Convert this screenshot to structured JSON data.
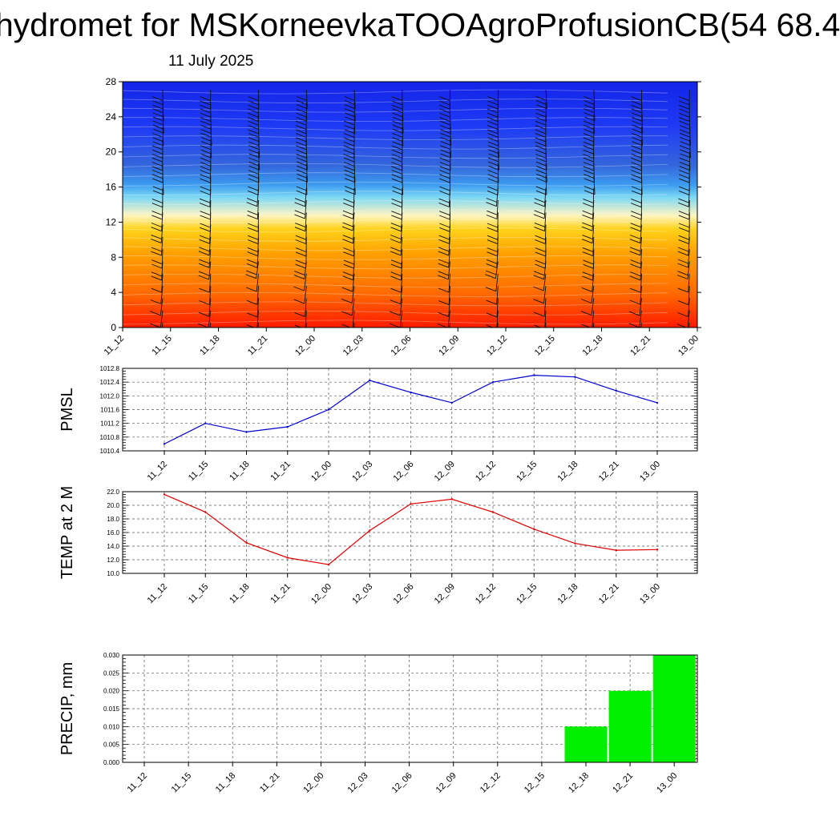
{
  "title": "hydromet for MSKorneevkaTOOAgroProfusionCB(54 68.4",
  "subtitle": "11 July 2025",
  "chart_data": [
    {
      "type": "heatmap",
      "title": "",
      "ylim": [
        0,
        28
      ],
      "yticks": [
        0,
        4,
        8,
        12,
        16,
        20,
        24,
        28
      ],
      "categories": [
        "11_12",
        "11_15",
        "11_18",
        "11_21",
        "12_00",
        "12_03",
        "12_06",
        "12_09",
        "12_12",
        "12_15",
        "12_18",
        "12_21",
        "13_00"
      ],
      "colormap": [
        "#ff1a00",
        "#ff6a00",
        "#ffa000",
        "#ffd21a",
        "#fff5c0",
        "#7dd8f5",
        "#3c9cf0",
        "#3466dd",
        "#1e3af5",
        "#1424e8"
      ],
      "grid": false,
      "wind_barbs": true
    },
    {
      "type": "line",
      "ylabel": "PMSL",
      "color": "#0000cc",
      "categories": [
        "11_12",
        "11_15",
        "11_18",
        "11_21",
        "12_00",
        "12_03",
        "12_06",
        "12_09",
        "12_12",
        "12_15",
        "12_18",
        "12_21",
        "13_00"
      ],
      "values": [
        1010.6,
        1011.2,
        1010.95,
        1011.1,
        1011.6,
        1012.45,
        1012.1,
        1011.8,
        1012.4,
        1012.6,
        1012.55,
        1012.15,
        1011.8
      ],
      "ylim": [
        1010.4,
        1012.8
      ],
      "yticks": [
        "1010.4",
        "1010.8",
        "1011.2",
        "1011.6",
        "1012.0",
        "1012.4",
        "1012.8"
      ],
      "grid": true
    },
    {
      "type": "line",
      "ylabel": "TEMP at 2 M",
      "color": "#dd0000",
      "categories": [
        "11_12",
        "11_15",
        "11_18",
        "11_21",
        "12_00",
        "12_03",
        "12_06",
        "12_09",
        "12_12",
        "12_15",
        "12_18",
        "12_21",
        "13_00"
      ],
      "values": [
        21.6,
        19.0,
        14.5,
        12.3,
        11.3,
        16.3,
        20.2,
        20.9,
        19.0,
        16.5,
        14.4,
        13.4,
        13.5
      ],
      "ylim": [
        10.0,
        22.0
      ],
      "yticks": [
        "10.0",
        "12.0",
        "14.0",
        "16.0",
        "18.0",
        "20.0",
        "22.0"
      ],
      "grid": true
    },
    {
      "type": "bar",
      "ylabel": "PRECIP, mm",
      "color": "#00ee00",
      "categories": [
        "11_12",
        "11_15",
        "11_18",
        "11_21",
        "12_00",
        "12_03",
        "12_06",
        "12_09",
        "12_12",
        "12_15",
        "12_18",
        "12_21",
        "13_00"
      ],
      "values": [
        0,
        0,
        0,
        0,
        0,
        0,
        0,
        0,
        0,
        0,
        0.01,
        0.02,
        0.03
      ],
      "ylim": [
        0,
        0.03
      ],
      "yticks": [
        "0.000",
        "0.005",
        "0.010",
        "0.015",
        "0.020",
        "0.025",
        "0.030"
      ],
      "grid": true
    }
  ]
}
